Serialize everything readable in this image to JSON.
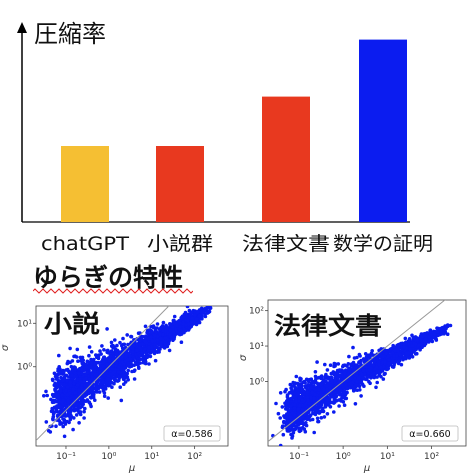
{
  "subtitle": "ゆらぎの特性",
  "chart_data": [
    {
      "type": "bar",
      "ylabel": "圧縮率",
      "categories": [
        "chatGPT",
        "小説群",
        "法律文書",
        "数学の証明"
      ],
      "values": [
        0.4,
        0.4,
        0.66,
        0.96
      ],
      "colors": [
        "#F5BF33",
        "#E8391F",
        "#E8391F",
        "#0B1CF0"
      ],
      "ylim": [
        0,
        1
      ]
    },
    {
      "type": "scatter",
      "title": "小説",
      "xlabel": "μ",
      "ylabel": "σ",
      "xscale": "log",
      "yscale": "log",
      "xlim": [
        0.02,
        600
      ],
      "ylim": [
        0.015,
        25
      ],
      "x_ticks": [
        "10⁻¹",
        "10⁰",
        "10¹",
        "10²"
      ],
      "y_ticks": [
        "10⁰",
        "10¹"
      ],
      "annotation": "α=0.586",
      "alpha": 0.586,
      "color": "#0B1CF0"
    },
    {
      "type": "scatter",
      "title": "法律文書",
      "xlabel": "μ",
      "ylabel": "σ",
      "xscale": "log",
      "yscale": "log",
      "xlim": [
        0.02,
        600
      ],
      "ylim": [
        0.015,
        200
      ],
      "x_ticks": [
        "10⁻¹",
        "10⁰",
        "10¹",
        "10²"
      ],
      "y_ticks": [
        "10⁰",
        "10¹",
        "10²"
      ],
      "annotation": "α=0.660",
      "alpha": 0.66,
      "color": "#0B1CF0"
    }
  ]
}
